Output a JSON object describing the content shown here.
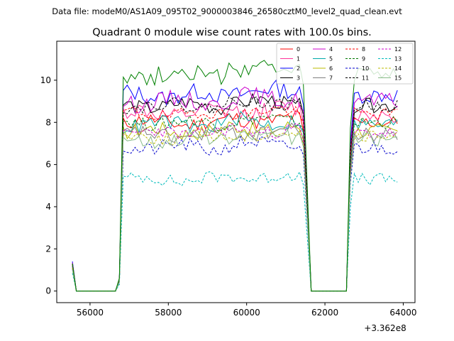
{
  "chart_data": {
    "type": "line",
    "suptitle": "Data file: modeM0/AS1A09_095T02_9000003846_26580cztM0_level2_quad_clean.evt",
    "title": "Quadrant 0 module wise count rates with 100.0s bins.",
    "xlabel": "",
    "ylabel": "",
    "x_offset_label": "+3.362e8",
    "xlim": [
      55150,
      64300
    ],
    "ylim": [
      -0.55,
      11.85
    ],
    "xticks": [
      56000,
      58000,
      60000,
      62000,
      64000
    ],
    "xtick_labels": [
      "56000",
      "58000",
      "60000",
      "62000",
      "64000"
    ],
    "yticks": [
      0,
      2,
      4,
      6,
      8,
      10
    ],
    "ytick_labels": [
      "0",
      "2",
      "4",
      "6",
      "8",
      "10"
    ],
    "grid": false,
    "legend_position": "top-right",
    "segments": [
      {
        "start": 55550,
        "ramp": [],
        "on_end": 55650,
        "on_levels": [
          1.0
        ],
        "off_end": 56650,
        "off_ramp": []
      },
      {
        "start": 56750,
        "ramp": [
          0.5
        ],
        "on_end": 61450,
        "on_levels": [],
        "off_end": 61650,
        "off_ramp": [
          0.6
        ]
      },
      {
        "start": 62550,
        "ramp": [
          0.6
        ],
        "on_end": 63850,
        "on_levels": [],
        "off_end": 63850,
        "off_ramp": []
      }
    ],
    "series": [
      {
        "name": "0",
        "color": "#ff0000",
        "dash": "solid",
        "start_level": 1.3,
        "level": 8.0,
        "amp": 0.35,
        "seed": 11
      },
      {
        "name": "1",
        "color": "#ff3399",
        "dash": "solid",
        "start_level": 1.25,
        "level": 8.4,
        "amp": 0.4,
        "seed": 12
      },
      {
        "name": "2",
        "color": "#0000ff",
        "dash": "solid",
        "start_level": 1.4,
        "level": 9.3,
        "amp": 0.4,
        "seed": 13
      },
      {
        "name": "3",
        "color": "#000000",
        "dash": "solid",
        "start_level": 1.3,
        "level": 8.8,
        "amp": 0.35,
        "seed": 14
      },
      {
        "name": "4",
        "color": "#cc00cc",
        "dash": "solid",
        "start_level": 1.35,
        "level": 9.0,
        "amp": 0.4,
        "seed": 15
      },
      {
        "name": "5",
        "color": "#00aaaa",
        "dash": "solid",
        "start_level": 1.2,
        "level": 7.9,
        "amp": 0.35,
        "seed": 16
      },
      {
        "name": "6",
        "color": "#bbbb00",
        "dash": "solid",
        "start_level": 1.15,
        "level": 7.6,
        "amp": 0.35,
        "seed": 17
      },
      {
        "name": "7",
        "color": "#808080",
        "dash": "solid",
        "start_level": 1.1,
        "level": 7.4,
        "amp": 0.35,
        "seed": 18
      },
      {
        "name": "8",
        "color": "#ff0000",
        "dash": "dashed",
        "start_level": 1.25,
        "level": 8.4,
        "amp": 0.3,
        "seed": 19
      },
      {
        "name": "9",
        "color": "#007700",
        "dash": "dashed",
        "start_level": 1.2,
        "level": 8.0,
        "amp": 0.3,
        "seed": 20
      },
      {
        "name": "10",
        "color": "#0000cc",
        "dash": "dashed",
        "start_level": 1.05,
        "level": 6.8,
        "amp": 0.35,
        "seed": 21
      },
      {
        "name": "11",
        "color": "#000000",
        "dash": "dashed",
        "start_level": 1.3,
        "level": 8.8,
        "amp": 0.3,
        "seed": 22
      },
      {
        "name": "12",
        "color": "#cc00cc",
        "dash": "dashed",
        "start_level": 1.15,
        "level": 7.5,
        "amp": 0.3,
        "seed": 23
      },
      {
        "name": "13",
        "color": "#00bbbb",
        "dash": "dashed",
        "start_level": 0.85,
        "level": 5.3,
        "amp": 0.3,
        "seed": 24
      },
      {
        "name": "14",
        "color": "#bbbb00",
        "dash": "dashed",
        "start_level": 1.1,
        "level": 7.3,
        "amp": 0.3,
        "seed": 25
      },
      {
        "name": "15",
        "color": "#88bb88",
        "dash": "solid",
        "start_level": 1.0,
        "level": 7.2,
        "amp": 0.35,
        "seed": 26
      },
      {
        "name": "green",
        "color": "#008000",
        "dash": "solid",
        "start_level": 1.3,
        "level": 10.3,
        "amp": 0.45,
        "seed": 27,
        "in_legend": false
      }
    ]
  }
}
